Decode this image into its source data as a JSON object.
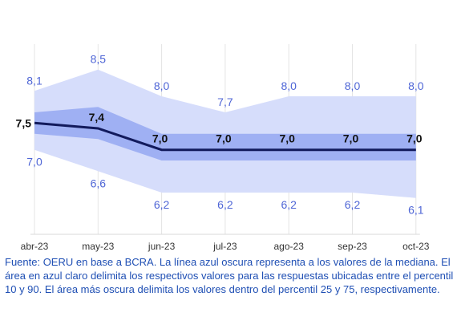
{
  "chart_data": {
    "type": "area",
    "categories": [
      "abr-23",
      "may-23",
      "jun-23",
      "jul-23",
      "ago-23",
      "sep-23",
      "oct-23"
    ],
    "series": [
      {
        "role": "p90",
        "values": [
          8.1,
          8.5,
          8.0,
          7.7,
          8.0,
          8.0,
          8.0
        ]
      },
      {
        "role": "p75",
        "values": [
          7.7,
          7.8,
          7.3,
          7.3,
          7.3,
          7.3,
          7.3
        ]
      },
      {
        "role": "median",
        "values": [
          7.5,
          7.4,
          7.0,
          7.0,
          7.0,
          7.0,
          7.0
        ]
      },
      {
        "role": "p25",
        "values": [
          7.3,
          7.2,
          6.8,
          6.8,
          6.8,
          6.8,
          6.8
        ]
      },
      {
        "role": "p10",
        "values": [
          7.0,
          6.6,
          6.2,
          6.2,
          6.2,
          6.2,
          6.1
        ]
      }
    ],
    "labels": {
      "upper": [
        "8,1",
        "8,5",
        "8,0",
        "7,7",
        "8,0",
        "8,0",
        "8,0"
      ],
      "median": [
        "7,5",
        "7,4",
        "7,0",
        "7,0",
        "7,0",
        "7,0",
        "7,0"
      ],
      "lower": [
        "7,0",
        "6,6",
        "6,2",
        "6,2",
        "6,2",
        "6,2",
        "6,1"
      ]
    },
    "title": "",
    "xlabel": "",
    "ylabel": "",
    "ylim": [
      5.3,
      9.2
    ],
    "grid": true,
    "colors": {
      "outer_band": "#d6ddfb",
      "inner_band": "#9fb0f3",
      "median_line": "#121a5c",
      "band_label": "#4f66d6",
      "grid": "#e4e4e4"
    }
  },
  "note": "Fuente: OERU en base a BCRA. La línea azul oscura representa a los valores de la mediana. El área en azul claro delimita los respectivos valores para las respuestas ubicadas entre el percentil 10 y 90. El área más oscura delimita los valores dentro del percentil 25 y 75, respectivamente."
}
